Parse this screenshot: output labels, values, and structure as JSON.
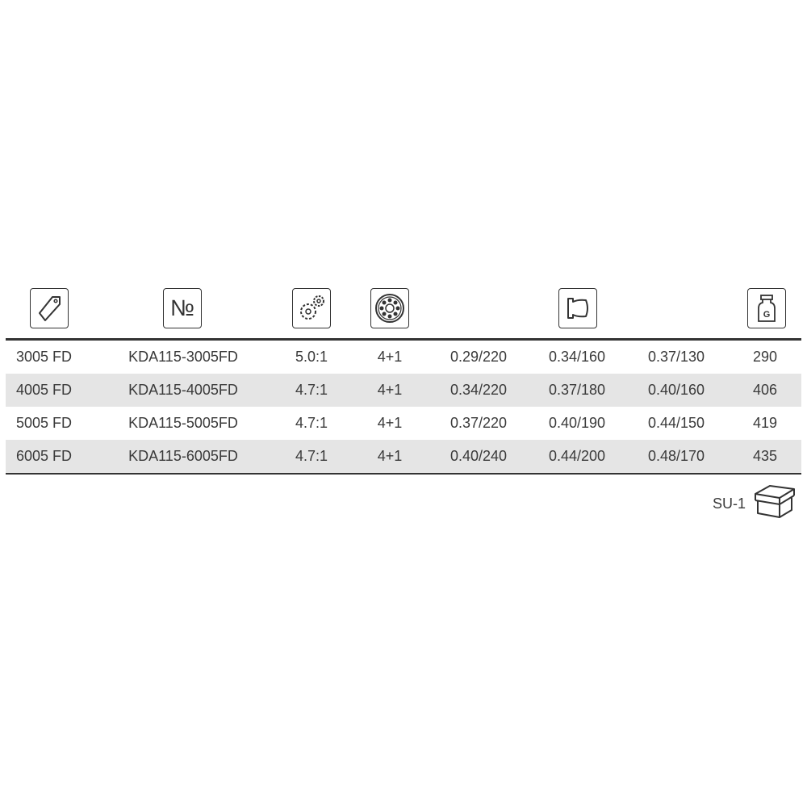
{
  "header_icons": [
    "price-tag-icon",
    "number-sign-icon",
    "gear-ratio-icon",
    "ball-bearing-icon",
    "spool-capacity-icon",
    "weight-icon"
  ],
  "number_symbol": "№",
  "weight_letter": "G",
  "rows": [
    [
      "3005 FD",
      "KDA115-3005FD",
      "5.0:1",
      "4+1",
      "0.29/220",
      "0.34/160",
      "0.37/130",
      "290"
    ],
    [
      "4005 FD",
      "KDA115-4005FD",
      "4.7:1",
      "4+1",
      "0.34/220",
      "0.37/180",
      "0.40/160",
      "406"
    ],
    [
      "5005 FD",
      "KDA115-5005FD",
      "4.7:1",
      "4+1",
      "0.37/220",
      "0.40/190",
      "0.44/150",
      "419"
    ],
    [
      "6005 FD",
      "KDA115-6005FD",
      "4.7:1",
      "4+1",
      "0.40/240",
      "0.44/200",
      "0.48/170",
      "435"
    ]
  ],
  "footer": {
    "su_label": "SU-1",
    "icon": "box-icon"
  },
  "colors": {
    "alt_row": "#e5e5e5",
    "text": "#3a3a3a",
    "rule": "#333333"
  }
}
